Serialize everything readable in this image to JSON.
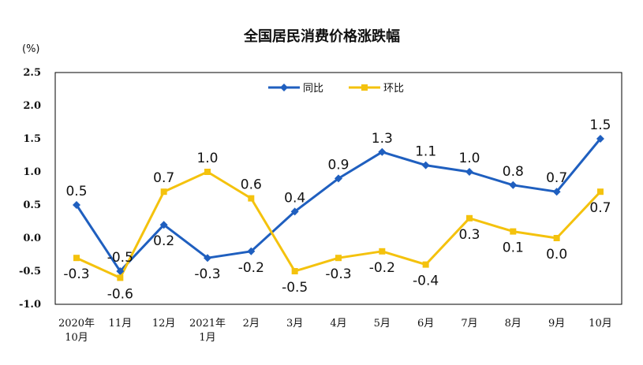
{
  "chart_data": {
    "type": "line",
    "title": "全国居民消费价格涨跌幅",
    "ylabel": "(%)",
    "ylim": [
      -1.0,
      2.5
    ],
    "yticks": [
      "2.5",
      "2.0",
      "1.5",
      "1.0",
      "0.5",
      "0.0",
      "-0.5",
      "-1.0"
    ],
    "categories": [
      [
        "2020年",
        "10月"
      ],
      [
        "11月"
      ],
      [
        "12月"
      ],
      [
        "2021年",
        "1月"
      ],
      [
        "2月"
      ],
      [
        "3月"
      ],
      [
        "4月"
      ],
      [
        "5月"
      ],
      [
        "6月"
      ],
      [
        "7月"
      ],
      [
        "8月"
      ],
      [
        "9月"
      ],
      [
        "10月"
      ]
    ],
    "series": [
      {
        "name": "同比",
        "color": "#1f5fbf",
        "marker": "diamond",
        "values": [
          0.5,
          -0.5,
          0.2,
          -0.3,
          -0.2,
          0.4,
          0.9,
          1.3,
          1.1,
          1.0,
          0.8,
          0.7,
          1.5
        ],
        "labels": [
          "0.5",
          "-0.5",
          "0.2",
          "-0.3",
          "-0.2",
          "0.4",
          "0.9",
          "1.3",
          "1.1",
          "1.0",
          "0.8",
          "0.7",
          "1.5"
        ]
      },
      {
        "name": "环比",
        "color": "#f4c20d",
        "marker": "square",
        "values": [
          -0.3,
          -0.6,
          0.7,
          1.0,
          0.6,
          -0.5,
          -0.3,
          -0.2,
          -0.4,
          0.3,
          0.1,
          0.0,
          0.7
        ],
        "labels": [
          "-0.3",
          "-0.6",
          "0.7",
          "1.0",
          "0.6",
          "-0.5",
          "-0.3",
          "-0.2",
          "-0.4",
          "0.3",
          "0.1",
          "0.0",
          "0.7"
        ]
      }
    ],
    "legend": "top-center",
    "grid": false
  }
}
